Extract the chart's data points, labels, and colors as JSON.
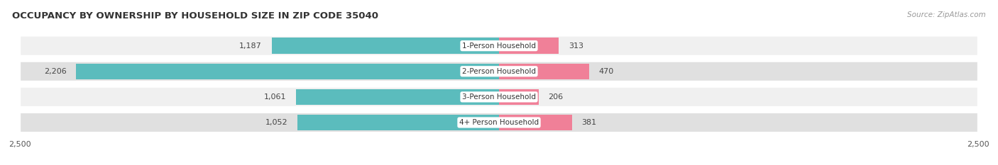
{
  "title": "OCCUPANCY BY OWNERSHIP BY HOUSEHOLD SIZE IN ZIP CODE 35040",
  "source": "Source: ZipAtlas.com",
  "categories": [
    "1-Person Household",
    "2-Person Household",
    "3-Person Household",
    "4+ Person Household"
  ],
  "owner_values": [
    1187,
    2206,
    1061,
    1052
  ],
  "renter_values": [
    313,
    470,
    206,
    381
  ],
  "owner_color": "#5bbcbd",
  "renter_color": "#f08098",
  "row_bg_colors": [
    "#f0f0f0",
    "#e0e0e0",
    "#f0f0f0",
    "#e0e0e0"
  ],
  "xlim": 2500,
  "title_fontsize": 9.5,
  "source_fontsize": 7.5,
  "tick_fontsize": 8,
  "bar_label_fontsize": 8,
  "cat_label_fontsize": 7.5,
  "figsize": [
    14.06,
    2.33
  ],
  "dpi": 100
}
